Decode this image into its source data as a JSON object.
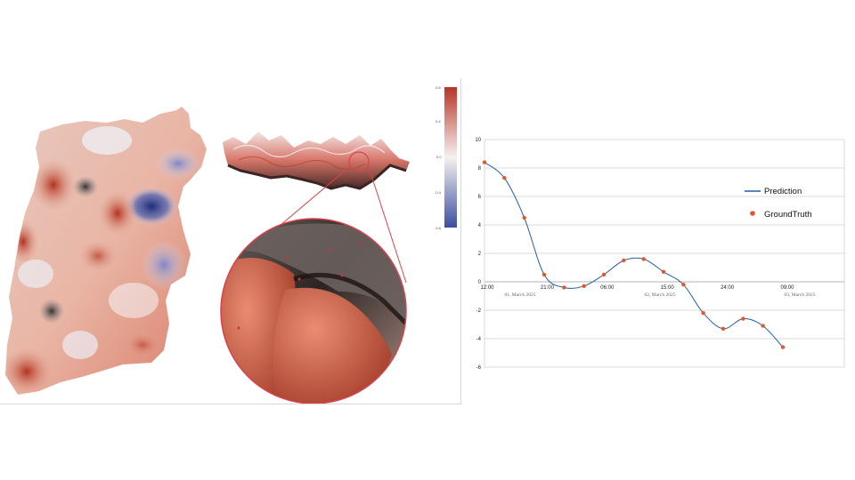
{
  "colorbar": {
    "ticks": [
      "0.8",
      "0.4",
      "0.0",
      "-0.4",
      "-0.8"
    ],
    "colors": {
      "high": "#b83428",
      "mid": "#f5f1f0",
      "low": "#3b4fa0"
    }
  },
  "chart_data": {
    "type": "line",
    "y_ticks": [
      "10",
      "8",
      "6",
      "4",
      "2",
      "0",
      "-2",
      "-4",
      "-6"
    ],
    "ylim": [
      -6,
      10
    ],
    "x_ticks": [
      "12:00",
      "21:00",
      "06:00",
      "15:00",
      "24:00",
      "09:00"
    ],
    "date_labels": [
      "01, March 2025",
      "02, March 2025",
      "03, March 2025"
    ],
    "grid": true,
    "legend": {
      "position": "right",
      "prediction": "Prediction",
      "groundtruth": "GroundTruth"
    },
    "series": [
      {
        "name": "Prediction",
        "color": "#1f5fa8",
        "values": [
          8.4,
          7.3,
          4.5,
          0.5,
          -0.4,
          -0.3,
          0.5,
          1.5,
          1.6,
          0.7,
          -0.2,
          -2.2,
          -3.3,
          -2.6,
          -3.1,
          -4.6
        ]
      },
      {
        "name": "GroundTruth",
        "color": "#e8542a",
        "values": [
          8.4,
          7.3,
          4.5,
          0.5,
          -0.4,
          -0.3,
          0.5,
          1.5,
          1.6,
          0.7,
          -0.2,
          -2.2,
          -3.3,
          -2.6,
          -3.1,
          -4.6
        ]
      }
    ]
  }
}
